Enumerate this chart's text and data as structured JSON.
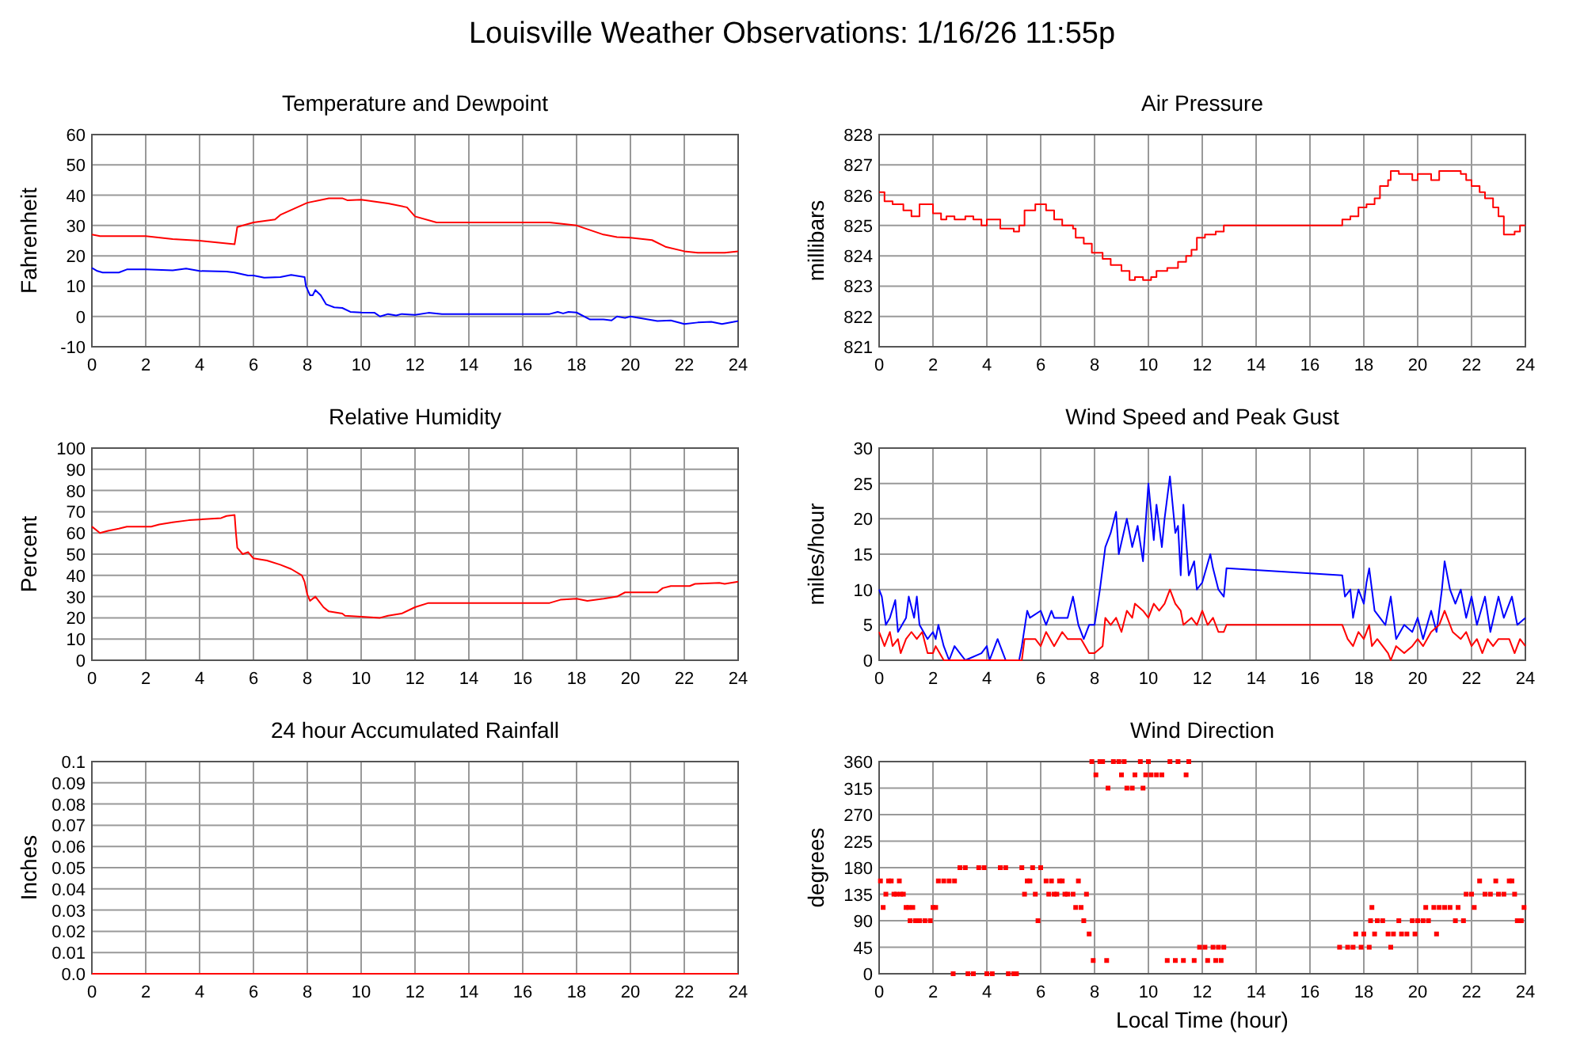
{
  "chart_data": [
    {
      "type": "other",
      "title": "Louisville Weather Observations: 1/16/26 11:55p"
    },
    {
      "type": "line",
      "title": "Temperature and Dewpoint",
      "ylabel": "Fahrenheit",
      "xlim": [
        0,
        24
      ],
      "xticks": [
        0,
        2,
        4,
        6,
        8,
        10,
        12,
        14,
        16,
        18,
        20,
        22,
        24
      ],
      "ylim": [
        -10,
        60
      ],
      "yticks": [
        -10,
        0,
        10,
        20,
        30,
        40,
        50,
        60
      ],
      "grid": true,
      "series": [
        {
          "color": "#ff0000",
          "x": [
            0,
            0.3,
            2,
            3,
            4,
            5.3,
            5.4,
            6,
            6.8,
            7,
            8,
            8.8,
            9.3,
            9.5,
            10,
            11,
            11.7,
            12,
            12.8,
            17,
            18,
            19,
            19.5,
            20,
            20.8,
            21.3,
            22,
            22.5,
            23.5,
            24
          ],
          "values": [
            27,
            26.5,
            26.5,
            25.5,
            25,
            23.8,
            29.5,
            31,
            32,
            33.5,
            37.5,
            39,
            39,
            38.3,
            38.5,
            37.3,
            36,
            33,
            31,
            31,
            30,
            27,
            26.2,
            26,
            25.2,
            23,
            21.5,
            21,
            21,
            21.5
          ]
        },
        {
          "color": "#0000ff",
          "x": [
            0,
            0.2,
            0.4,
            1,
            1.3,
            2,
            3,
            3.5,
            4,
            5,
            5.3,
            5.8,
            6,
            6.4,
            7,
            7.4,
            7.9,
            7.95,
            8.1,
            8.2,
            8.3,
            8.5,
            8.7,
            9,
            9.3,
            9.6,
            10,
            10.5,
            10.7,
            11,
            11.3,
            11.5,
            12,
            12.5,
            13,
            17,
            17.3,
            17.5,
            17.7,
            18,
            18.5,
            19,
            19.3,
            19.5,
            19.8,
            20,
            21,
            21.5,
            22,
            22.5,
            23,
            23.4,
            24
          ],
          "values": [
            16,
            15,
            14.5,
            14.5,
            15.5,
            15.5,
            15.2,
            15.8,
            15,
            14.8,
            14.5,
            13.5,
            13.5,
            12.8,
            13,
            13.7,
            13,
            10,
            7,
            7,
            8.7,
            7,
            4,
            3,
            2.8,
            1.5,
            1.3,
            1.2,
            0,
            0.8,
            0.3,
            0.8,
            0.5,
            1.2,
            0.8,
            0.8,
            1.5,
            1,
            1.5,
            1.3,
            -1,
            -1,
            -1.3,
            0,
            -0.5,
            0,
            -1.5,
            -1.3,
            -2.5,
            -2,
            -1.8,
            -2.5,
            -1.5
          ]
        }
      ]
    },
    {
      "type": "step",
      "title": "Air Pressure",
      "ylabel": "millibars",
      "xlim": [
        0,
        24
      ],
      "xticks": [
        0,
        2,
        4,
        6,
        8,
        10,
        12,
        14,
        16,
        18,
        20,
        22,
        24
      ],
      "ylim": [
        821,
        828
      ],
      "yticks": [
        821,
        822,
        823,
        824,
        825,
        826,
        827,
        828
      ],
      "grid": true,
      "series": [
        {
          "color": "#ff0000",
          "x": [
            0,
            0.2,
            0.5,
            0.9,
            1.2,
            1.5,
            2,
            2.3,
            2.5,
            2.8,
            3.2,
            3.5,
            3.8,
            4,
            4.5,
            5,
            5.2,
            5.4,
            5.8,
            6.2,
            6.5,
            6.8,
            7.2,
            7.3,
            7.6,
            7.9,
            8.3,
            8.6,
            9,
            9.3,
            9.5,
            9.8,
            10.1,
            10.3,
            10.7,
            11.1,
            11.4,
            11.6,
            11.8,
            12.1,
            12.5,
            12.8,
            17.2,
            17.5,
            17.8,
            18.1,
            18.4,
            18.6,
            18.9,
            19,
            19.3,
            19.8,
            20,
            20.5,
            20.8,
            21.6,
            21.8,
            22,
            22.3,
            22.5,
            22.8,
            23,
            23.2,
            23.6,
            23.8,
            24
          ],
          "values": [
            826.1,
            825.8,
            825.7,
            825.5,
            825.3,
            825.7,
            825.4,
            825.2,
            825.3,
            825.2,
            825.3,
            825.2,
            825,
            825.2,
            824.9,
            824.8,
            825,
            825.5,
            825.7,
            825.5,
            825.2,
            825,
            824.9,
            824.6,
            824.4,
            824.1,
            823.9,
            823.7,
            823.5,
            823.2,
            823.3,
            823.2,
            823.3,
            823.5,
            823.6,
            823.8,
            824,
            824.2,
            824.6,
            824.7,
            824.8,
            825,
            825.2,
            825.3,
            825.6,
            825.7,
            825.9,
            826.3,
            826.5,
            826.8,
            826.7,
            826.5,
            826.7,
            826.5,
            826.8,
            826.7,
            826.5,
            826.3,
            826.1,
            825.9,
            825.6,
            825.3,
            824.7,
            824.8,
            825,
            825
          ]
        }
      ]
    },
    {
      "type": "line",
      "title": "Relative Humidity",
      "ylabel": "Percent",
      "xlim": [
        0,
        24
      ],
      "xticks": [
        0,
        2,
        4,
        6,
        8,
        10,
        12,
        14,
        16,
        18,
        20,
        22,
        24
      ],
      "ylim": [
        0,
        100
      ],
      "yticks": [
        0,
        10,
        20,
        30,
        40,
        50,
        60,
        70,
        80,
        90,
        100
      ],
      "grid": true,
      "series": [
        {
          "color": "#ff0000",
          "x": [
            0,
            0.3,
            0.6,
            1,
            1.3,
            2.2,
            2.5,
            3,
            3.6,
            4.8,
            5,
            5.3,
            5.35,
            5.4,
            5.6,
            5.8,
            6,
            6.5,
            7,
            7.4,
            7.8,
            7.9,
            8,
            8.1,
            8.3,
            8.6,
            8.8,
            9.3,
            9.4,
            10,
            10.7,
            11,
            11.5,
            12,
            12.5,
            17,
            17.4,
            18,
            18.4,
            19,
            19.5,
            19.8,
            20.2,
            21,
            21.2,
            21.5,
            22.2,
            22.4,
            23.3,
            23.5,
            24
          ],
          "values": [
            63,
            60,
            61,
            62,
            63,
            63,
            64,
            65,
            66,
            67,
            68,
            68.5,
            60,
            53,
            50,
            51,
            48,
            47,
            45,
            43,
            40,
            37,
            31,
            28,
            30,
            25,
            23,
            22,
            21,
            20.5,
            20,
            21,
            22,
            25,
            27,
            27,
            28.5,
            29,
            28,
            29,
            30,
            32,
            32,
            32,
            34,
            35,
            35,
            36,
            36.5,
            36,
            37
          ]
        }
      ]
    },
    {
      "type": "line",
      "title": "Wind Speed and Peak Gust",
      "ylabel": "miles/hour",
      "xlim": [
        0,
        24
      ],
      "xticks": [
        0,
        2,
        4,
        6,
        8,
        10,
        12,
        14,
        16,
        18,
        20,
        22,
        24
      ],
      "ylim": [
        0,
        30
      ],
      "yticks": [
        0,
        5,
        10,
        15,
        20,
        25,
        30
      ],
      "grid": true,
      "series": [
        {
          "color": "#0000ff",
          "x": [
            0,
            0.1,
            0.25,
            0.4,
            0.6,
            0.7,
            1,
            1.1,
            1.3,
            1.4,
            1.5,
            1.8,
            2,
            2.1,
            2.2,
            2.4,
            2.6,
            2.8,
            3,
            3.2,
            3.8,
            4,
            4.1,
            4.4,
            4.6,
            4.7,
            5.2,
            5.3,
            5.5,
            5.6,
            6,
            6.2,
            6.4,
            6.5,
            7,
            7.2,
            7.4,
            7.6,
            7.8,
            8,
            8.2,
            8.4,
            8.6,
            8.8,
            8.9,
            9.2,
            9.4,
            9.6,
            9.8,
            10,
            10.2,
            10.3,
            10.5,
            10.6,
            10.8,
            11,
            11.1,
            11.2,
            11.3,
            11.5,
            11.7,
            11.8,
            12,
            12.3,
            12.4,
            12.6,
            12.8,
            12.9,
            17.2,
            17.3,
            17.5,
            17.6,
            17.8,
            18,
            18.1,
            18.2,
            18.4,
            18.6,
            18.8,
            19,
            19.2,
            19.5,
            19.8,
            20,
            20.2,
            20.5,
            20.7,
            20.9,
            21,
            21.2,
            21.4,
            21.6,
            21.8,
            22,
            22.2,
            22.5,
            22.7,
            23,
            23.2,
            23.5,
            23.7,
            24
          ],
          "values": [
            10,
            9,
            5,
            6,
            8.5,
            4,
            6,
            9,
            6,
            9,
            5,
            3,
            4,
            3,
            5,
            2,
            0,
            2,
            1,
            0,
            1,
            2,
            0,
            3,
            1,
            0,
            0,
            2,
            7,
            6,
            7,
            5,
            7,
            6,
            6,
            9,
            5,
            3,
            5,
            5,
            10,
            16,
            18,
            21,
            15,
            20,
            16,
            19,
            14,
            25,
            17,
            22,
            16,
            20,
            26,
            18,
            19,
            12,
            22,
            12,
            14,
            10,
            11,
            15,
            13,
            10,
            9,
            13,
            12,
            9,
            10,
            6,
            10,
            8,
            11,
            13,
            7,
            6,
            5,
            9,
            3,
            5,
            4,
            6,
            3,
            7,
            4,
            10,
            14,
            10,
            8,
            10,
            6,
            9,
            5,
            9,
            4,
            9,
            6,
            9,
            5,
            6
          ]
        },
        {
          "color": "#ff0000",
          "x": [
            0,
            0.1,
            0.2,
            0.4,
            0.5,
            0.7,
            0.8,
            1,
            1.2,
            1.4,
            1.6,
            1.8,
            2,
            2.1,
            2.4,
            5.3,
            5.4,
            5.8,
            6,
            6.2,
            6.5,
            6.8,
            7,
            7.5,
            7.8,
            8,
            8.3,
            8.4,
            8.6,
            8.8,
            9,
            9.2,
            9.4,
            9.5,
            9.8,
            10,
            10.2,
            10.4,
            10.6,
            10.8,
            11,
            11.2,
            11.3,
            11.6,
            11.8,
            12,
            12.2,
            12.4,
            12.6,
            12.8,
            12.9,
            17.2,
            17.4,
            17.6,
            17.8,
            18,
            18.2,
            18.3,
            18.5,
            18.7,
            18.9,
            19,
            19.2,
            19.5,
            19.8,
            20,
            20.2,
            20.5,
            20.8,
            21,
            21.3,
            21.6,
            21.8,
            22,
            22.2,
            22.4,
            22.6,
            22.8,
            23,
            23.4,
            23.6,
            23.8,
            24
          ],
          "values": [
            4,
            3,
            2,
            4,
            2,
            3,
            1,
            3,
            4,
            3,
            4,
            1,
            1,
            2,
            0,
            0,
            3,
            3,
            2,
            4,
            2,
            4,
            3,
            3,
            1,
            1,
            2,
            6,
            5,
            6,
            4,
            7,
            6,
            8,
            7,
            6,
            8,
            7,
            8,
            10,
            8,
            7,
            5,
            6,
            5,
            7,
            5,
            6,
            4,
            4,
            5,
            5,
            3,
            2,
            4,
            3,
            5,
            2,
            3,
            2,
            1,
            0,
            2,
            1,
            2,
            3,
            2,
            4,
            5,
            7,
            4,
            3,
            4,
            2,
            3,
            1,
            3,
            2,
            3,
            3,
            1,
            3,
            2
          ]
        }
      ]
    },
    {
      "type": "line",
      "title": "24 hour Accumulated Rainfall",
      "ylabel": "Inches",
      "xlim": [
        0,
        24
      ],
      "xticks": [
        0,
        2,
        4,
        6,
        8,
        10,
        12,
        14,
        16,
        18,
        20,
        22,
        24
      ],
      "ylim": [
        0,
        0.1
      ],
      "yticks": [
        {
          "value": 0,
          "label": "0.0"
        },
        0.01,
        0.02,
        0.03,
        0.04,
        0.05,
        0.06,
        0.07,
        0.08,
        0.09,
        0.1
      ],
      "grid": true,
      "series": [
        {
          "color": "#ff0000",
          "x": [
            0,
            24
          ],
          "values": [
            0,
            0
          ]
        }
      ]
    },
    {
      "type": "scatter",
      "title": "Wind Direction",
      "ylabel": "degrees",
      "xlabel": "Local Time (hour)",
      "xlim": [
        0,
        24
      ],
      "xticks": [
        0,
        2,
        4,
        6,
        8,
        10,
        12,
        14,
        16,
        18,
        20,
        22,
        24
      ],
      "ylim": [
        0,
        360
      ],
      "yticks": [
        0,
        45,
        90,
        135,
        180,
        225,
        270,
        315,
        360
      ],
      "grid": true,
      "marker": "square",
      "series": [
        {
          "color": "#ff0000",
          "x": [
            0.05,
            0.15,
            0.25,
            0.35,
            0.45,
            0.55,
            0.65,
            0.75,
            0.8,
            0.9,
            1,
            1.1,
            1.15,
            1.25,
            1.35,
            1.5,
            1.7,
            1.9,
            2,
            2.1,
            2.2,
            2.4,
            2.6,
            2.8,
            2.75,
            3,
            3.2,
            3.3,
            3.5,
            3.7,
            3.9,
            4,
            4.2,
            4.5,
            4.7,
            4.8,
            5,
            5.1,
            5.3,
            5.4,
            5.5,
            5.6,
            5.7,
            5.8,
            5.9,
            6,
            6.2,
            6.3,
            6.4,
            6.5,
            6.6,
            6.7,
            6.8,
            6.9,
            7,
            7.2,
            7.3,
            7.4,
            7.5,
            7.6,
            7.7,
            7.8,
            7.9,
            7.95,
            8.05,
            8.2,
            8.3,
            8.45,
            8.5,
            8.7,
            8.9,
            9,
            9.1,
            9.2,
            9.4,
            9.5,
            9.7,
            9.8,
            9.9,
            10,
            10.1,
            10.3,
            10.5,
            10.7,
            10.8,
            11,
            11.1,
            11.3,
            11.4,
            11.5,
            11.7,
            11.9,
            12.1,
            12.2,
            12.4,
            12.5,
            12.6,
            12.7,
            12.8,
            17.1,
            17.4,
            17.6,
            17.7,
            17.9,
            18,
            18.2,
            18.25,
            18.3,
            18.4,
            18.5,
            18.7,
            18.9,
            19,
            19.1,
            19.3,
            19.4,
            19.6,
            19.8,
            19.9,
            20,
            20.2,
            20.3,
            20.4,
            20.6,
            20.7,
            20.8,
            21,
            21.2,
            21.4,
            21.5,
            21.7,
            21.8,
            22,
            22.1,
            22.3,
            22.5,
            22.7,
            22.9,
            23,
            23.2,
            23.4,
            23.5,
            23.6,
            23.7,
            23.85,
            23.95
          ],
          "values": [
            157.5,
            112.5,
            135,
            157.5,
            157.5,
            135,
            135,
            157.5,
            135,
            135,
            112.5,
            112.5,
            90,
            112.5,
            90,
            90,
            90,
            90,
            112.5,
            112.5,
            157.5,
            157.5,
            157.5,
            157.5,
            0,
            180,
            180,
            0,
            0,
            180,
            180,
            0,
            0,
            180,
            180,
            0,
            0,
            0,
            180,
            135,
            157.5,
            157.5,
            180,
            135,
            90,
            180,
            157.5,
            135,
            157.5,
            135,
            135,
            157.5,
            157.5,
            135,
            135,
            135,
            112.5,
            157.5,
            112.5,
            90,
            135,
            67.5,
            360,
            22.5,
            337.5,
            360,
            360,
            22.5,
            315,
            360,
            360,
            337.5,
            360,
            315,
            315,
            337.5,
            360,
            315,
            337.5,
            360,
            337.5,
            337.5,
            337.5,
            22.5,
            360,
            22.5,
            360,
            22.5,
            337.5,
            360,
            22.5,
            45,
            45,
            22.5,
            45,
            22.5,
            45,
            22.5,
            45,
            45,
            45,
            45,
            67.5,
            45,
            67.5,
            45,
            90,
            112.5,
            67.5,
            90,
            90,
            67.5,
            45,
            67.5,
            90,
            67.5,
            67.5,
            90,
            67.5,
            90,
            90,
            112.5,
            90,
            112.5,
            67.5,
            112.5,
            112.5,
            112.5,
            90,
            112.5,
            90,
            135,
            135,
            112.5,
            157.5,
            135,
            135,
            157.5,
            135,
            135,
            157.5,
            157.5,
            135,
            90,
            90,
            112.5
          ]
        }
      ]
    }
  ]
}
